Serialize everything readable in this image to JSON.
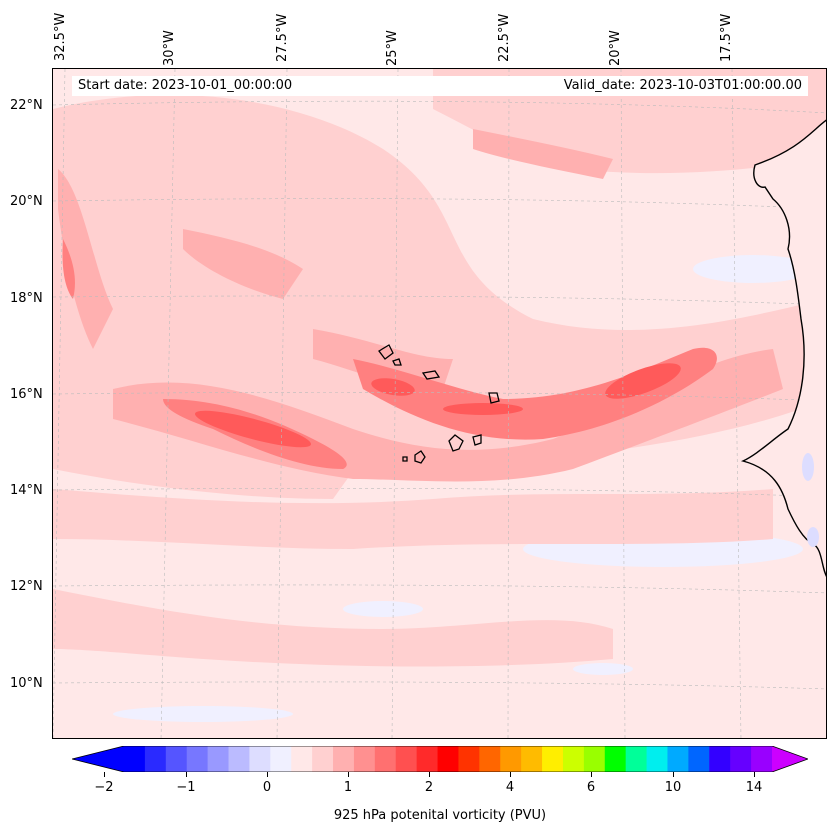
{
  "map": {
    "lon_labels": [
      "32.5°W",
      "30°W",
      "27.5°W",
      "25°W",
      "22.5°W",
      "20°W",
      "17.5°W"
    ],
    "lat_labels": [
      "22°N",
      "20°N",
      "18°N",
      "16°N",
      "14°N",
      "12°N",
      "10°N"
    ],
    "start_date": "Start date: 2023-10-01_00:00:00",
    "valid_date": "Valid_date: 2023-10-03T01:00:00.00",
    "background_color": "#ffe8e8",
    "coastline_color": "#000000"
  },
  "colorbar": {
    "ticks": [
      "−2",
      "−1",
      "0",
      "1",
      "2",
      "4",
      "6",
      "10",
      "14"
    ],
    "label": "925 hPa potenital vorticity (PVU)",
    "colors": [
      "#0000ff",
      "#2a2aff",
      "#5555ff",
      "#7777ff",
      "#9999ff",
      "#bbbbff",
      "#ddddff",
      "#f0f0ff",
      "#ffe8e8",
      "#ffd0d0",
      "#ffb0b0",
      "#ff9090",
      "#ff7070",
      "#ff5050",
      "#ff2a2a",
      "#ff0000",
      "#ff3300",
      "#ff6600",
      "#ff9900",
      "#ffbb00",
      "#ffee00",
      "#ccff00",
      "#99ff00",
      "#00ff00",
      "#00ff99",
      "#00eeee",
      "#00aaff",
      "#0066ff",
      "#3300ff",
      "#6600ff",
      "#9900ff"
    ],
    "extend_low": "#0000ff",
    "extend_high": "#cc00ff"
  }
}
